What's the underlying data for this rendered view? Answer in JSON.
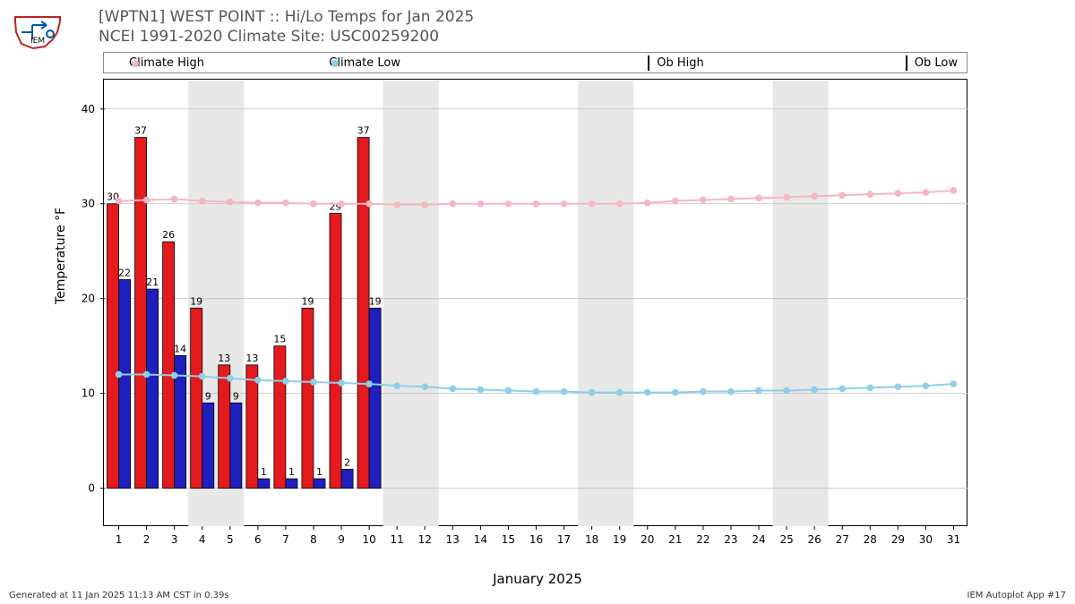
{
  "title_line1": "[WPTN1] WEST POINT :: Hi/Lo Temps for Jan 2025",
  "title_line2": "NCEI 1991-2020 Climate Site: USC00259200",
  "footer_left": "Generated at 11 Jan 2025 11:13 AM CST in 0.39s",
  "footer_right": "IEM Autoplot App #17",
  "ylabel": "Temperature °F",
  "xlabel": "January 2025",
  "legend": {
    "climate_high": "Climate High",
    "climate_low": "Climate Low",
    "ob_high": "Ob High",
    "ob_low": "Ob Low"
  },
  "chart": {
    "type": "bar+line",
    "xlim": [
      0.5,
      31.5
    ],
    "ylim": [
      -4,
      43
    ],
    "ytick_values": [
      0,
      10,
      20,
      30,
      40
    ],
    "xtick_values": [
      1,
      2,
      3,
      4,
      5,
      6,
      7,
      8,
      9,
      10,
      11,
      12,
      13,
      14,
      15,
      16,
      17,
      18,
      19,
      20,
      21,
      22,
      23,
      24,
      25,
      26,
      27,
      28,
      29,
      30,
      31
    ],
    "weekend_bands": [
      [
        3.5,
        5.5
      ],
      [
        10.5,
        12.5
      ],
      [
        17.5,
        19.5
      ],
      [
        24.5,
        26.5
      ]
    ],
    "days": [
      1,
      2,
      3,
      4,
      5,
      6,
      7,
      8,
      9,
      10,
      11,
      12,
      13,
      14,
      15,
      16,
      17,
      18,
      19,
      20,
      21,
      22,
      23,
      24,
      25,
      26,
      27,
      28,
      29,
      30,
      31
    ],
    "ob_high": [
      30,
      37,
      26,
      19,
      13,
      13,
      15,
      19,
      29,
      37
    ],
    "ob_low": [
      22,
      21,
      14,
      9,
      9,
      1,
      1,
      1,
      2,
      19
    ],
    "climate_high": [
      30.3,
      30.4,
      30.5,
      30.3,
      30.2,
      30.1,
      30.1,
      30.0,
      30.0,
      30.0,
      29.9,
      29.9,
      30.0,
      30.0,
      30.0,
      30.0,
      30.0,
      30.0,
      30.0,
      30.1,
      30.3,
      30.4,
      30.5,
      30.6,
      30.7,
      30.8,
      30.9,
      31.0,
      31.1,
      31.2,
      31.4
    ],
    "climate_low": [
      12.0,
      12.0,
      11.9,
      11.8,
      11.6,
      11.4,
      11.3,
      11.2,
      11.1,
      11.0,
      10.8,
      10.7,
      10.5,
      10.4,
      10.3,
      10.2,
      10.2,
      10.1,
      10.1,
      10.1,
      10.1,
      10.2,
      10.2,
      10.3,
      10.3,
      10.4,
      10.5,
      10.6,
      10.7,
      10.8,
      11.0
    ],
    "colors": {
      "ob_high_fill": "#e41a1c",
      "ob_low_fill": "#1f1fbf",
      "bar_edge": "#000000",
      "climate_high": "#f5b7c1",
      "climate_low": "#8fcfe8",
      "grid": "#bfbfbf",
      "weekend_band": "#e8e8e8",
      "background": "#ffffff",
      "text": "#000000",
      "title_text": "#555555"
    },
    "bar_width": 0.42,
    "marker_size": 3.8,
    "line_width": 2,
    "label_fontsize": 11,
    "tick_fontsize": 12
  }
}
